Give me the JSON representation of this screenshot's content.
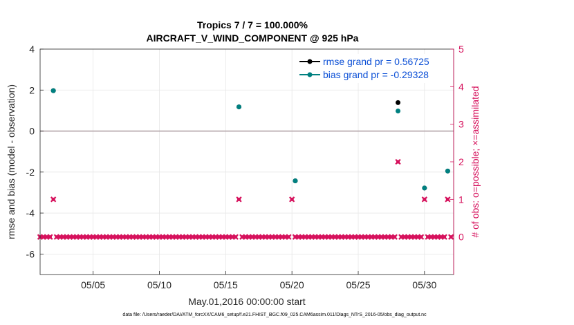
{
  "chart_data": {
    "type": "scatter",
    "title_line1": "Tropics 7 / 7 = 100.000%",
    "title_line2": "AIRCRAFT_V_WIND_COMPONENT @ 925 hPa",
    "xlabel": "May.01,2016 00:00:00 start",
    "ylabel_left": "rmse and bias (model - observation)",
    "ylabel_right": "# of obs: o=possible; ×=assimilated",
    "xlim": [
      1,
      32.2
    ],
    "ylim_left": [
      -7,
      4
    ],
    "ylim_right": [
      -1,
      5
    ],
    "x_ticks": [
      5,
      10,
      15,
      20,
      25,
      30
    ],
    "x_tick_labels": [
      "05/05",
      "05/10",
      "05/15",
      "05/20",
      "05/25",
      "05/30"
    ],
    "y_ticks_left": [
      -6,
      -4,
      -2,
      0,
      2,
      4
    ],
    "y_ticks_right": [
      0,
      1,
      2,
      3,
      4,
      5
    ],
    "zero_line": 0,
    "series": [
      {
        "name": "rmse grand pr = 0.56725",
        "color": "#000000",
        "axis": "left",
        "points": [
          [
            2.0,
            1.97
          ],
          [
            16.0,
            1.18
          ],
          [
            20.25,
            -2.43
          ],
          [
            28.0,
            1.39
          ],
          [
            30.0,
            -2.78
          ],
          [
            31.75,
            -1.95
          ]
        ]
      },
      {
        "name": "bias grand pr = -0.29328",
        "color": "#008080",
        "axis": "left",
        "points": [
          [
            2.0,
            1.97
          ],
          [
            16.0,
            1.18
          ],
          [
            20.25,
            -2.43
          ],
          [
            28.0,
            0.98
          ],
          [
            30.0,
            -2.78
          ],
          [
            31.75,
            -1.95
          ]
        ]
      },
      {
        "name": "obs count",
        "color": "#d6115c",
        "axis": "right",
        "marker": "x",
        "x_start": 1.0,
        "x_step": 0.25,
        "nonzero": {
          "2.0": 1,
          "16.0": 1,
          "20.0": 1,
          "28.0": 2,
          "30.0": 1,
          "31.75": 1
        }
      }
    ],
    "footer": "data file: /Users/raeder/DAI/ATM_forcXX/CAM6_setup/f.e21.FHIST_BGC.f09_025.CAM6assim.011/Diags_NTrS_2016-05/obs_diag_output.nc"
  }
}
